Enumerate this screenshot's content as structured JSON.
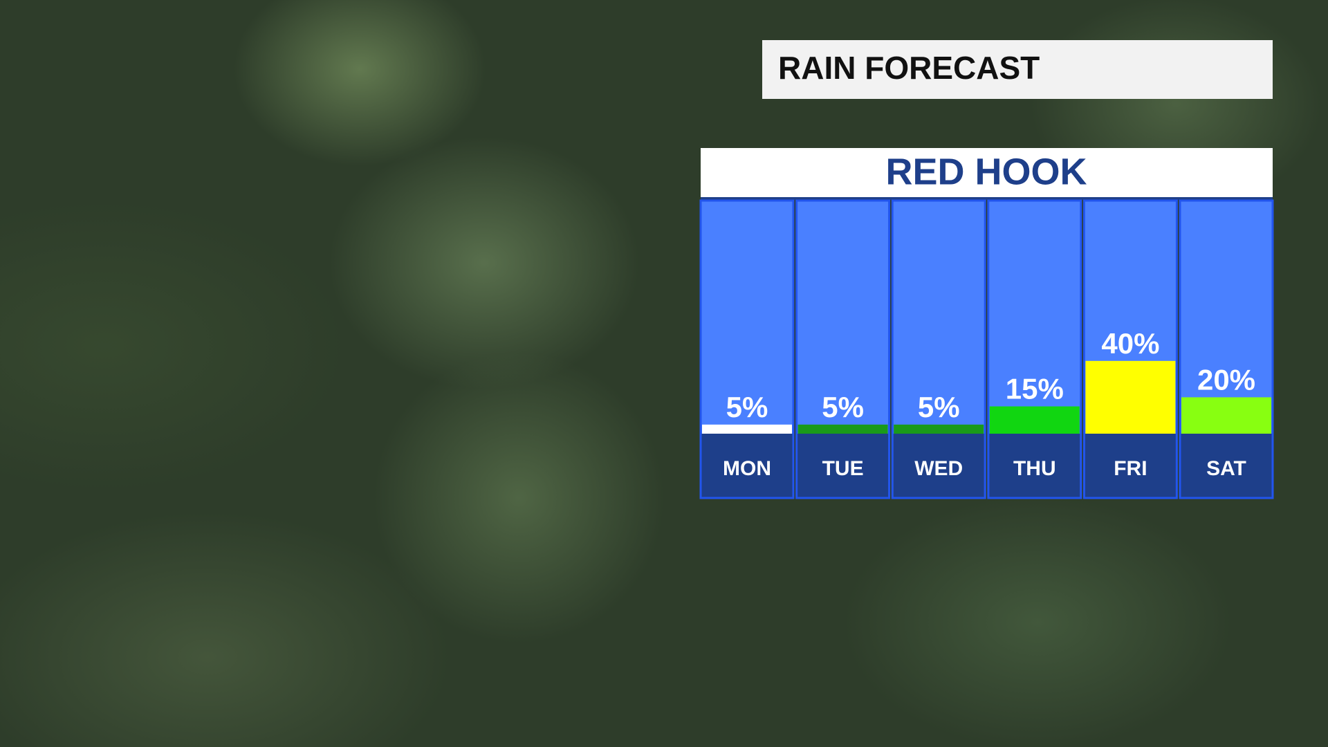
{
  "chart_data": {
    "type": "bar",
    "title": "RAIN FORECAST",
    "subtitle": "RED HOOK",
    "categories": [
      "MON",
      "TUE",
      "WED",
      "THU",
      "FRI",
      "SAT"
    ],
    "values": [
      5,
      5,
      5,
      15,
      40,
      20
    ],
    "value_labels": [
      "5%",
      "5%",
      "5%",
      "15%",
      "40%",
      "20%"
    ],
    "colors": [
      "#ffffff",
      "#1a9a1a",
      "#1a9a1a",
      "#11d611",
      "#ffff00",
      "#88ff11"
    ]
  }
}
